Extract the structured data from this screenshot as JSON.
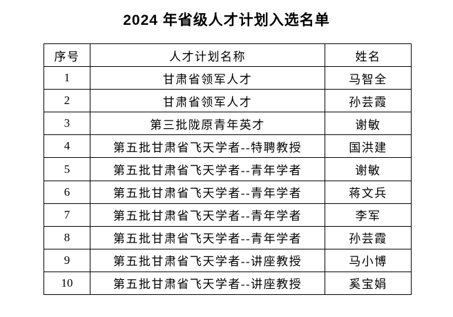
{
  "title": "2024 年省级人才计划入选名单",
  "table": {
    "headers": [
      "序号",
      "人才计划名称",
      "姓名"
    ],
    "rows": [
      {
        "no": "1",
        "program": "甘肃省领军人才",
        "name": "马智全"
      },
      {
        "no": "2",
        "program": "甘肃省领军人才",
        "name": "孙芸霞"
      },
      {
        "no": "3",
        "program": "第三批陇原青年英才",
        "name": "谢敏"
      },
      {
        "no": "4",
        "program": "第五批甘肃省飞天学者--特聘教授",
        "name": "国洪建"
      },
      {
        "no": "5",
        "program": "第五批甘肃省飞天学者--青年学者",
        "name": "谢敏"
      },
      {
        "no": "6",
        "program": "第五批甘肃省飞天学者--青年学者",
        "name": "蒋文兵"
      },
      {
        "no": "7",
        "program": "第五批甘肃省飞天学者--青年学者",
        "name": "李军"
      },
      {
        "no": "8",
        "program": "第五批甘肃省飞天学者--青年学者",
        "name": "孙芸霞"
      },
      {
        "no": "9",
        "program": "第五批甘肃省飞天学者--讲座教授",
        "name": "马小博"
      },
      {
        "no": "10",
        "program": "第五批甘肃省飞天学者--讲座教授",
        "name": "奚宝娟"
      }
    ]
  },
  "colors": {
    "background": "#ffffff",
    "text": "#000000",
    "border": "#000000"
  }
}
